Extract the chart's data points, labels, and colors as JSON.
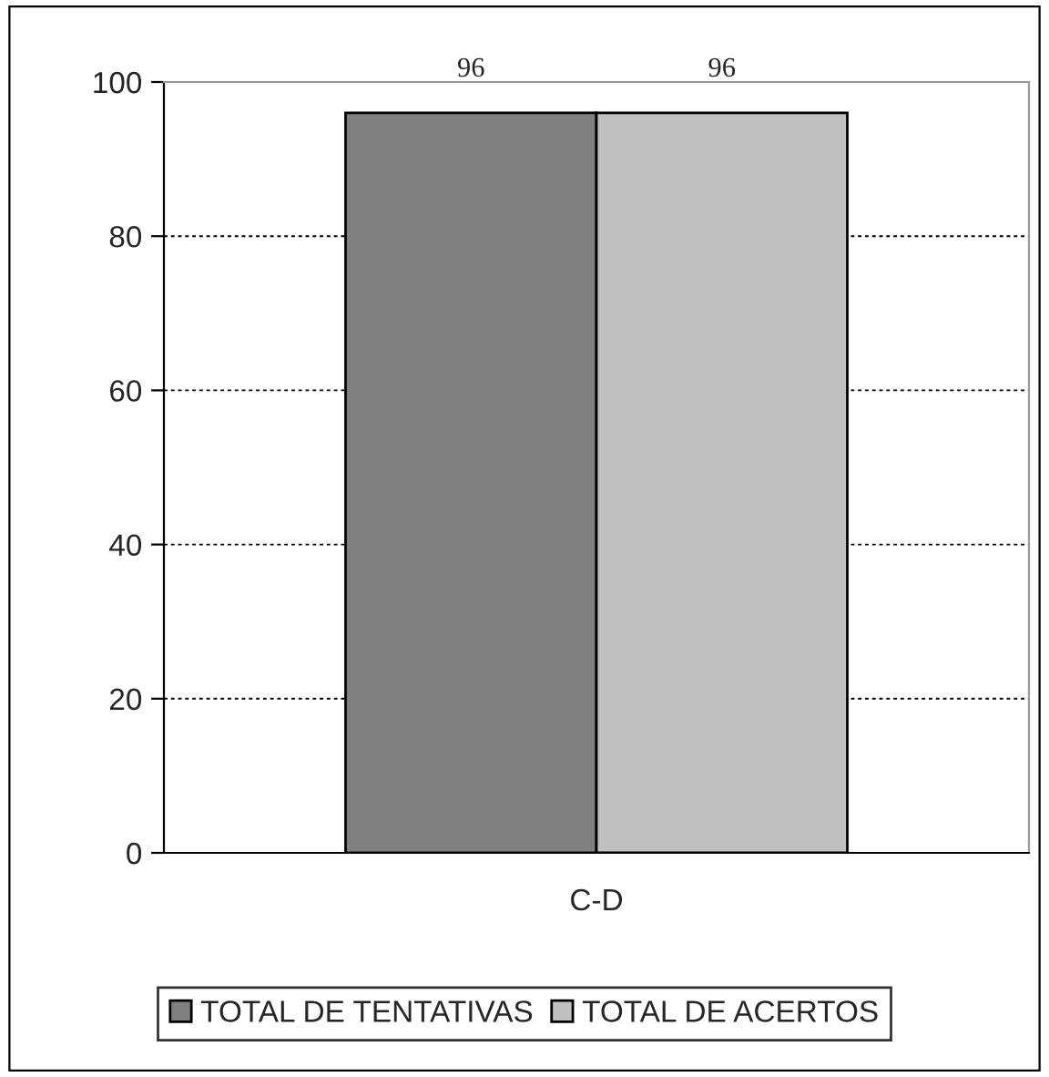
{
  "chart_data": {
    "type": "bar",
    "categories": [
      "C-D"
    ],
    "series": [
      {
        "name": "TOTAL DE TENTATIVAS",
        "color": "#808080",
        "values": [
          96
        ]
      },
      {
        "name": "TOTAL DE ACERTOS",
        "color": "#c0c0c0",
        "values": [
          96
        ]
      }
    ],
    "ylim": [
      0,
      100
    ],
    "yticks": [
      0,
      20,
      40,
      60,
      80,
      100
    ],
    "grid": "y",
    "legend": "bottom",
    "data_labels": true
  }
}
